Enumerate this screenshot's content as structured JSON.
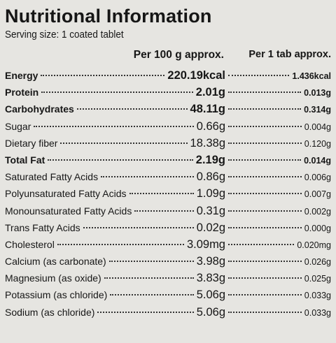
{
  "header": {
    "title": "Nutritional Information",
    "serving": "Serving size: 1 coated tablet"
  },
  "table": {
    "columns": [
      "Per 100 g approx.",
      "Per 1 tab approx."
    ],
    "rows": [
      [
        "Energy",
        "220.19kcal",
        "1.436kcal"
      ],
      [
        "Protein",
        "2.01g",
        "0.013g"
      ],
      [
        "Carbohydrates",
        "48.11g",
        "0.314g"
      ],
      [
        "Sugar",
        "0.66g",
        "0.004g"
      ],
      [
        "Dietary fiber",
        "18.38g",
        "0.120g"
      ],
      [
        "Total Fat",
        "2.19g",
        "0.014g"
      ],
      [
        "Saturated Fatty Acids",
        "0.86g",
        "0.006g"
      ],
      [
        "Polyunsaturated Fatty Acids",
        "1.09g",
        "0.007g"
      ],
      [
        "Monounsaturated Fatty Acids",
        "0.31g",
        "0.002g"
      ],
      [
        "Trans Fatty Acids",
        "0.02g",
        "0.000g"
      ],
      [
        "Cholesterol",
        "3.09mg",
        "0.020mg"
      ],
      [
        "Calcium (as carbonate)",
        "3.98g",
        "0.026g"
      ],
      [
        "Magnesium (as oxide)",
        "3.83g",
        "0.025g"
      ],
      [
        "Potassium (as chloride)",
        "5.06g",
        "0.033g"
      ],
      [
        "Sodium (as chloride)",
        "5.06g",
        "0.033g"
      ]
    ]
  }
}
